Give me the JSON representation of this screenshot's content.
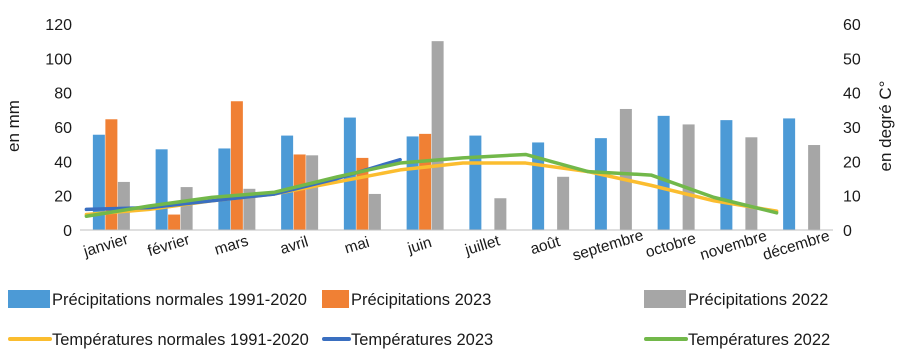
{
  "chart_data": {
    "type": "bar",
    "title": "",
    "categories": [
      "janvier",
      "février",
      "mars",
      "avril",
      "mai",
      "juin",
      "juillet",
      "août",
      "septembre",
      "octobre",
      "novembre",
      "décembre"
    ],
    "ylabel": "en mm",
    "y2label": "en degré C°",
    "ylim": [
      0,
      120
    ],
    "y2lim": [
      0,
      60
    ],
    "yticks": [
      "0",
      "20",
      "40",
      "60",
      "80",
      "100",
      "120"
    ],
    "y2ticks": [
      "0",
      "10",
      "20",
      "30",
      "40",
      "50",
      "60"
    ],
    "grid": false,
    "legend_position": "bottom",
    "bar_series": [
      {
        "name": "Précipitations normales 1991-2020",
        "color": "#4c9ad6",
        "values": [
          55.5,
          47,
          47.5,
          55,
          65.5,
          54.5,
          55,
          51,
          53.5,
          66.5,
          64,
          65
        ]
      },
      {
        "name": "Précipitations 2023",
        "color": "#f08034",
        "values": [
          64.5,
          9,
          75,
          44,
          42,
          56,
          null,
          null,
          null,
          null,
          null,
          null
        ]
      },
      {
        "name": "Précipitations 2022",
        "color": "#a6a6a6",
        "values": [
          28,
          25,
          24,
          43.5,
          21,
          110,
          18.5,
          31,
          70.5,
          61.5,
          54,
          49.5
        ]
      }
    ],
    "line_series": [
      {
        "name": "Températures normales 1991-2020",
        "color": "#fbbd2f",
        "values": [
          4.5,
          6,
          8.5,
          10.5,
          14,
          17.5,
          19.5,
          19.5,
          17,
          13,
          8.5,
          5.5
        ]
      },
      {
        "name": "Températures 2023",
        "color": "#3a6fc0",
        "values": [
          6,
          6.5,
          8.5,
          10.5,
          15,
          20.5,
          null,
          null,
          null,
          null,
          null,
          null
        ]
      },
      {
        "name": "Températures 2022",
        "color": "#72b84a",
        "values": [
          4,
          7,
          9.5,
          11,
          15.5,
          19.5,
          21,
          22,
          17,
          16,
          9.5,
          5
        ]
      }
    ]
  }
}
